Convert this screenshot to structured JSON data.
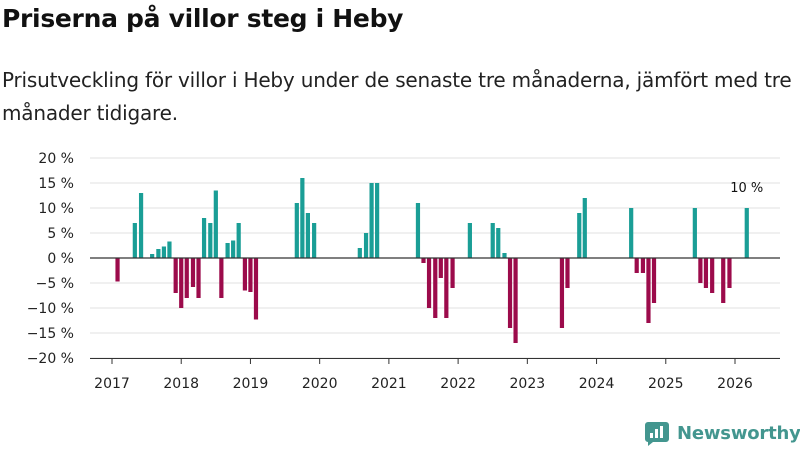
{
  "title": "Priserna på villor steg i Heby",
  "subtitle": "Prisutveckling för villor i Heby under de senaste tre månaderna, jämfört med tre månader tidigare.",
  "brand": {
    "name": "Newsworthy",
    "icon": "newsworthy-logo-icon"
  },
  "colors": {
    "positive": "#1a9e96",
    "negative": "#9c0b4b",
    "grid": "#e2e2e2",
    "zero": "#333333",
    "axis": "#333333",
    "brand": "#43968f"
  },
  "chart_data": {
    "type": "bar",
    "title": "Priserna på villor steg i Heby",
    "xlabel": "",
    "ylabel": "",
    "unit": "%",
    "ylim": [
      -20,
      20
    ],
    "yticks": [
      20,
      15,
      10,
      5,
      0,
      -5,
      -10,
      -15,
      -20
    ],
    "ytick_labels": [
      "20 %",
      "15 %",
      "10 %",
      "5 %",
      "0 %",
      "−5 %",
      "−10 %",
      "−15 %",
      "−20 %"
    ],
    "xticks": [
      2017,
      2018,
      2019,
      2020,
      2021,
      2022,
      2023,
      2024,
      2025,
      2026
    ],
    "xtick_labels": [
      "2017",
      "2018",
      "2019",
      "2020",
      "2021",
      "2022",
      "2023",
      "2024",
      "2025",
      "2026"
    ],
    "grid": true,
    "annotation": {
      "text": "10 %",
      "x": 2026.17,
      "value": 10
    },
    "points": [
      {
        "x": 2017.08,
        "value": -4.7
      },
      {
        "x": 2017.33,
        "value": 7
      },
      {
        "x": 2017.42,
        "value": 13
      },
      {
        "x": 2017.58,
        "value": 0.8
      },
      {
        "x": 2017.67,
        "value": 1.8
      },
      {
        "x": 2017.75,
        "value": 2.3
      },
      {
        "x": 2017.83,
        "value": 3.3
      },
      {
        "x": 2017.92,
        "value": -7
      },
      {
        "x": 2018.0,
        "value": -10
      },
      {
        "x": 2018.08,
        "value": -8
      },
      {
        "x": 2018.17,
        "value": -5.8
      },
      {
        "x": 2018.25,
        "value": -8
      },
      {
        "x": 2018.33,
        "value": 8
      },
      {
        "x": 2018.42,
        "value": 7
      },
      {
        "x": 2018.5,
        "value": 13.5
      },
      {
        "x": 2018.58,
        "value": -8
      },
      {
        "x": 2018.67,
        "value": 3
      },
      {
        "x": 2018.75,
        "value": 3.5
      },
      {
        "x": 2018.83,
        "value": 7
      },
      {
        "x": 2018.92,
        "value": -6.5
      },
      {
        "x": 2019.0,
        "value": -6.8
      },
      {
        "x": 2019.08,
        "value": -12.3
      },
      {
        "x": 2019.67,
        "value": 11
      },
      {
        "x": 2019.75,
        "value": 16
      },
      {
        "x": 2019.83,
        "value": 9
      },
      {
        "x": 2019.92,
        "value": 7
      },
      {
        "x": 2020.58,
        "value": 2
      },
      {
        "x": 2020.67,
        "value": 5
      },
      {
        "x": 2020.75,
        "value": 15
      },
      {
        "x": 2020.83,
        "value": 15
      },
      {
        "x": 2021.42,
        "value": 11
      },
      {
        "x": 2021.5,
        "value": -1
      },
      {
        "x": 2021.58,
        "value": -10
      },
      {
        "x": 2021.67,
        "value": -12
      },
      {
        "x": 2021.75,
        "value": -4
      },
      {
        "x": 2021.83,
        "value": -12
      },
      {
        "x": 2021.92,
        "value": -6
      },
      {
        "x": 2022.17,
        "value": 7
      },
      {
        "x": 2022.5,
        "value": 7
      },
      {
        "x": 2022.58,
        "value": 6
      },
      {
        "x": 2022.67,
        "value": 1
      },
      {
        "x": 2022.75,
        "value": -14
      },
      {
        "x": 2022.83,
        "value": -17
      },
      {
        "x": 2023.5,
        "value": -14
      },
      {
        "x": 2023.58,
        "value": -6
      },
      {
        "x": 2023.75,
        "value": 9
      },
      {
        "x": 2023.83,
        "value": 12
      },
      {
        "x": 2024.5,
        "value": 10
      },
      {
        "x": 2024.58,
        "value": -3
      },
      {
        "x": 2024.67,
        "value": -3
      },
      {
        "x": 2024.75,
        "value": -13
      },
      {
        "x": 2024.83,
        "value": -9
      },
      {
        "x": 2025.42,
        "value": 10
      },
      {
        "x": 2025.5,
        "value": -5
      },
      {
        "x": 2025.58,
        "value": -6
      },
      {
        "x": 2025.67,
        "value": -7
      },
      {
        "x": 2025.83,
        "value": -9
      },
      {
        "x": 2025.92,
        "value": -6
      },
      {
        "x": 2026.17,
        "value": 10
      }
    ]
  }
}
